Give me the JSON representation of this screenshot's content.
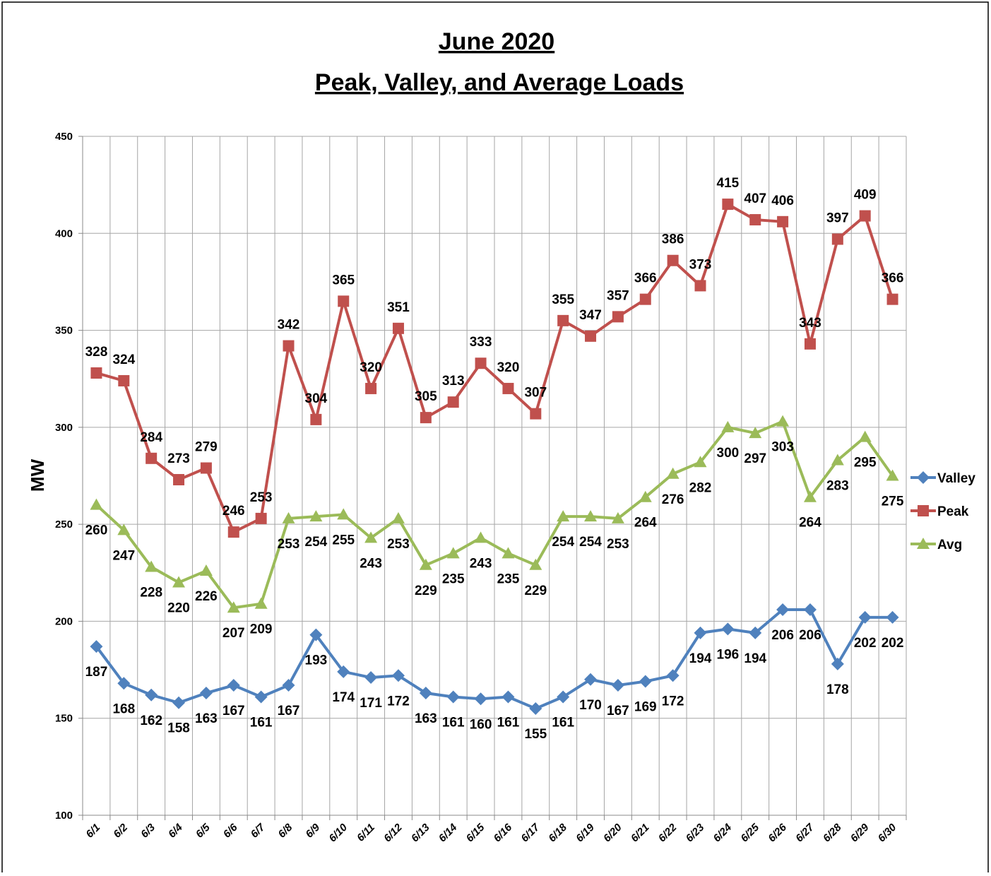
{
  "chart_data": {
    "type": "line",
    "title": "June 2020",
    "subtitle": "Peak, Valley, and Average Loads",
    "y_label": "MW",
    "categories": [
      "6/1",
      "6/2",
      "6/3",
      "6/4",
      "6/5",
      "6/6",
      "6/7",
      "6/8",
      "6/9",
      "6/10",
      "6/11",
      "6/12",
      "6/13",
      "6/14",
      "6/15",
      "6/16",
      "6/17",
      "6/18",
      "6/19",
      "6/20",
      "6/21",
      "6/22",
      "6/23",
      "6/24",
      "6/25",
      "6/26",
      "6/27",
      "6/28",
      "6/29",
      "6/30"
    ],
    "series": [
      {
        "name": "Valley",
        "color": "#4f81bd",
        "marker": "diamond",
        "values": [
          187,
          168,
          162,
          158,
          163,
          167,
          161,
          167,
          193,
          174,
          171,
          172,
          163,
          161,
          160,
          161,
          155,
          161,
          170,
          167,
          169,
          172,
          194,
          196,
          194,
          206,
          206,
          178,
          202,
          202
        ]
      },
      {
        "name": "Peak",
        "color": "#c0504d",
        "marker": "square",
        "values": [
          328,
          324,
          284,
          273,
          279,
          246,
          253,
          342,
          304,
          365,
          320,
          351,
          305,
          313,
          333,
          320,
          307,
          355,
          347,
          357,
          366,
          386,
          373,
          415,
          407,
          406,
          343,
          397,
          409,
          366
        ]
      },
      {
        "name": "Avg",
        "color": "#9bbb59",
        "marker": "triangle",
        "values": [
          260,
          247,
          228,
          220,
          226,
          207,
          209,
          253,
          254,
          255,
          243,
          253,
          229,
          235,
          243,
          235,
          229,
          254,
          254,
          253,
          264,
          276,
          282,
          300,
          297,
          303,
          264,
          283,
          295,
          275
        ]
      }
    ],
    "ylim": [
      100,
      450
    ],
    "yticks": [
      100,
      150,
      200,
      250,
      300,
      350,
      400,
      450
    ],
    "grid": true,
    "legend": "right"
  }
}
